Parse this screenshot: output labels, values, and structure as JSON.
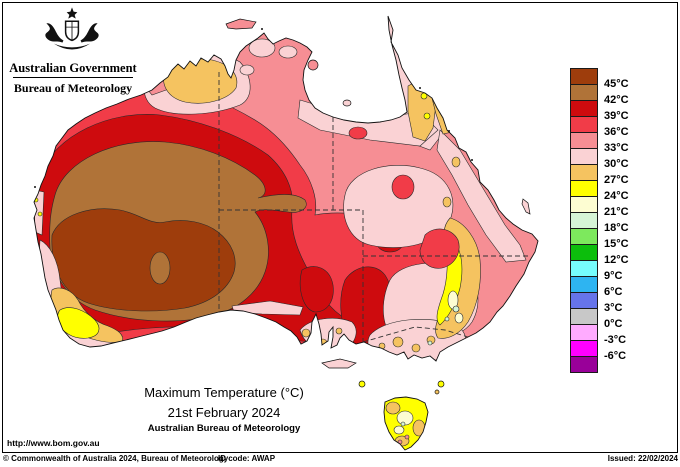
{
  "header": {
    "government": "Australian Government",
    "agency": "Bureau of Meteorology"
  },
  "titles": {
    "line1": "Maximum Temperature (°C)",
    "line2": "21st February 2024",
    "line3": "Australian Bureau of Meteorology"
  },
  "url": "http://www.bom.gov.au",
  "footer": {
    "copyright": "© Commonwealth of Australia 2024, Bureau of Meteorology",
    "id_code": "ID code: AWAP",
    "issued": "Issued: 22/02/2024"
  },
  "legend": {
    "boundary_labels": [
      "45°C",
      "42°C",
      "39°C",
      "36°C",
      "33°C",
      "30°C",
      "27°C",
      "24°C",
      "21°C",
      "18°C",
      "15°C",
      "12°C",
      "9°C",
      "6°C",
      "3°C",
      "0°C",
      "-3°C",
      "-6°C"
    ],
    "band_colors": {
      "t45plus": "#9E3D0C",
      "t42": "#B07338",
      "t39": "#CE0B0E",
      "t36": "#F13C48",
      "t33": "#F68E94",
      "t30": "#FAD2D4",
      "t27": "#F5C360",
      "t24": "#FFFF00",
      "t21": "#FDFDD2",
      "t18": "#D6F5D6",
      "t15": "#7DE95D",
      "t12": "#0CBE0C",
      "t9": "#76FDFD",
      "t6": "#2EB4F1",
      "t3": "#6674EA",
      "t0": "#C8C8C8",
      "tm3": "#FFABFF",
      "tm6": "#FF00FF",
      "tm6minus": "#990099"
    }
  }
}
